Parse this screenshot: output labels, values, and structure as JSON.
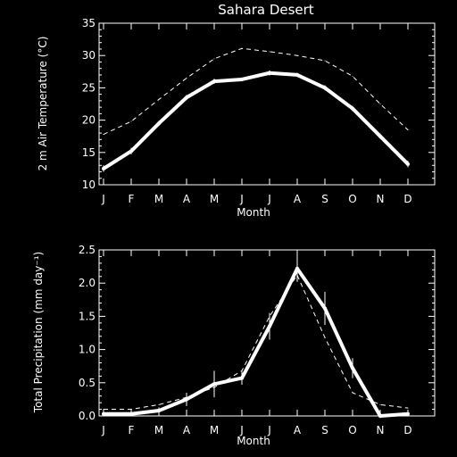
{
  "chart_data": [
    {
      "type": "line",
      "title": "Sahara Desert",
      "xlabel": "Month",
      "ylabel": "2 m Air Temperature (°C)",
      "ylim": [
        10,
        35
      ],
      "yticks": [
        "10",
        "15",
        "20",
        "25",
        "30",
        "35"
      ],
      "yticks_values": [
        10,
        15,
        20,
        25,
        30,
        35
      ],
      "categories": [
        "J",
        "F",
        "M",
        "A",
        "M",
        "J",
        "J",
        "A",
        "S",
        "O",
        "N",
        "D"
      ],
      "series": [
        {
          "style": "thick-solid",
          "values": [
            12.5,
            15.2,
            19.5,
            23.5,
            26.0,
            26.3,
            27.3,
            27.0,
            25.0,
            21.8,
            17.5,
            13.2
          ],
          "errors": [
            0.5,
            0.5,
            0.4,
            0.4,
            0.4,
            0.3,
            0.4,
            0.3,
            0.4,
            0.4,
            0.4,
            0.5
          ]
        },
        {
          "style": "dashed",
          "values": [
            17.8,
            19.8,
            23.2,
            26.5,
            29.5,
            31.1,
            30.6,
            30.0,
            29.2,
            26.8,
            22.5,
            18.5
          ]
        }
      ],
      "colors": {
        "axis": "#ffffff",
        "series": "#ffffff",
        "background": "#000000"
      }
    },
    {
      "type": "line",
      "title": "",
      "xlabel": "Month",
      "ylabel": "Total Precipitation (mm day⁻¹)",
      "ylim": [
        0,
        2.5
      ],
      "yticks": [
        "0.0",
        "0.5",
        "1.0",
        "1.5",
        "2.0",
        "2.5"
      ],
      "yticks_values": [
        0,
        0.5,
        1.0,
        1.5,
        2.0,
        2.5
      ],
      "categories": [
        "J",
        "F",
        "M",
        "A",
        "M",
        "J",
        "J",
        "A",
        "S",
        "O",
        "N",
        "D"
      ],
      "series": [
        {
          "style": "thick-solid",
          "values": [
            0.03,
            0.03,
            0.08,
            0.25,
            0.48,
            0.57,
            1.35,
            2.22,
            1.62,
            0.72,
            0.0,
            0.03
          ],
          "errors": [
            0.03,
            0.03,
            0.05,
            0.1,
            0.2,
            0.1,
            0.2,
            0.2,
            0.25,
            0.15,
            0.03,
            0.03
          ]
        },
        {
          "style": "dashed",
          "values": [
            0.1,
            0.1,
            0.17,
            0.28,
            0.43,
            0.68,
            1.5,
            2.12,
            1.18,
            0.35,
            0.17,
            0.12
          ]
        }
      ],
      "colors": {
        "axis": "#ffffff",
        "series": "#ffffff",
        "background": "#000000"
      }
    }
  ]
}
